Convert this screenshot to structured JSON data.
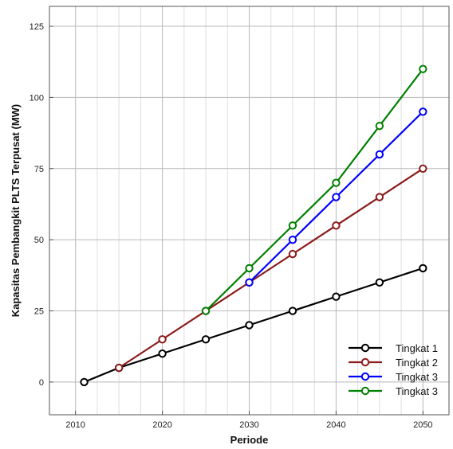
{
  "chart_data": {
    "type": "line",
    "xlabel": "Periode",
    "ylabel": "Kapasitas Pembangkit PLTS Terpusat (MW)",
    "xlim": [
      2007,
      2053
    ],
    "ylim": [
      -11.5,
      132
    ],
    "x_ticks": [
      2010,
      2020,
      2030,
      2040,
      2050
    ],
    "y_ticks": [
      0,
      25,
      50,
      75,
      100,
      125
    ],
    "x_tick_labels": [
      "2010",
      "2020",
      "2030",
      "2040",
      "2050"
    ],
    "y_tick_labels": [
      "0",
      "25",
      "50",
      "75",
      "100",
      "125"
    ],
    "grid": true,
    "legend_position": "bottom-right",
    "series": [
      {
        "name": "Tingkat 1",
        "color": "#000000",
        "x": [
          2011,
          2015,
          2020,
          2025,
          2030,
          2035,
          2040,
          2045,
          2050
        ],
        "y": [
          0,
          5,
          10,
          15,
          20,
          25,
          30,
          35,
          40
        ]
      },
      {
        "name": "Tingkat 2",
        "color": "#8b1a1a",
        "x": [
          2015,
          2020,
          2025,
          2030,
          2035,
          2040,
          2045,
          2050
        ],
        "y": [
          5,
          15,
          25,
          35,
          45,
          55,
          65,
          75
        ]
      },
      {
        "name": "Tingkat 3",
        "color": "#0000ff",
        "x": [
          2030,
          2035,
          2040,
          2045,
          2050
        ],
        "y": [
          35,
          50,
          65,
          80,
          95
        ]
      },
      {
        "name": "Tingkat 3",
        "color": "#008000",
        "x": [
          2025,
          2030,
          2035,
          2040,
          2045,
          2050
        ],
        "y": [
          25,
          40,
          55,
          70,
          90,
          110
        ]
      }
    ]
  }
}
